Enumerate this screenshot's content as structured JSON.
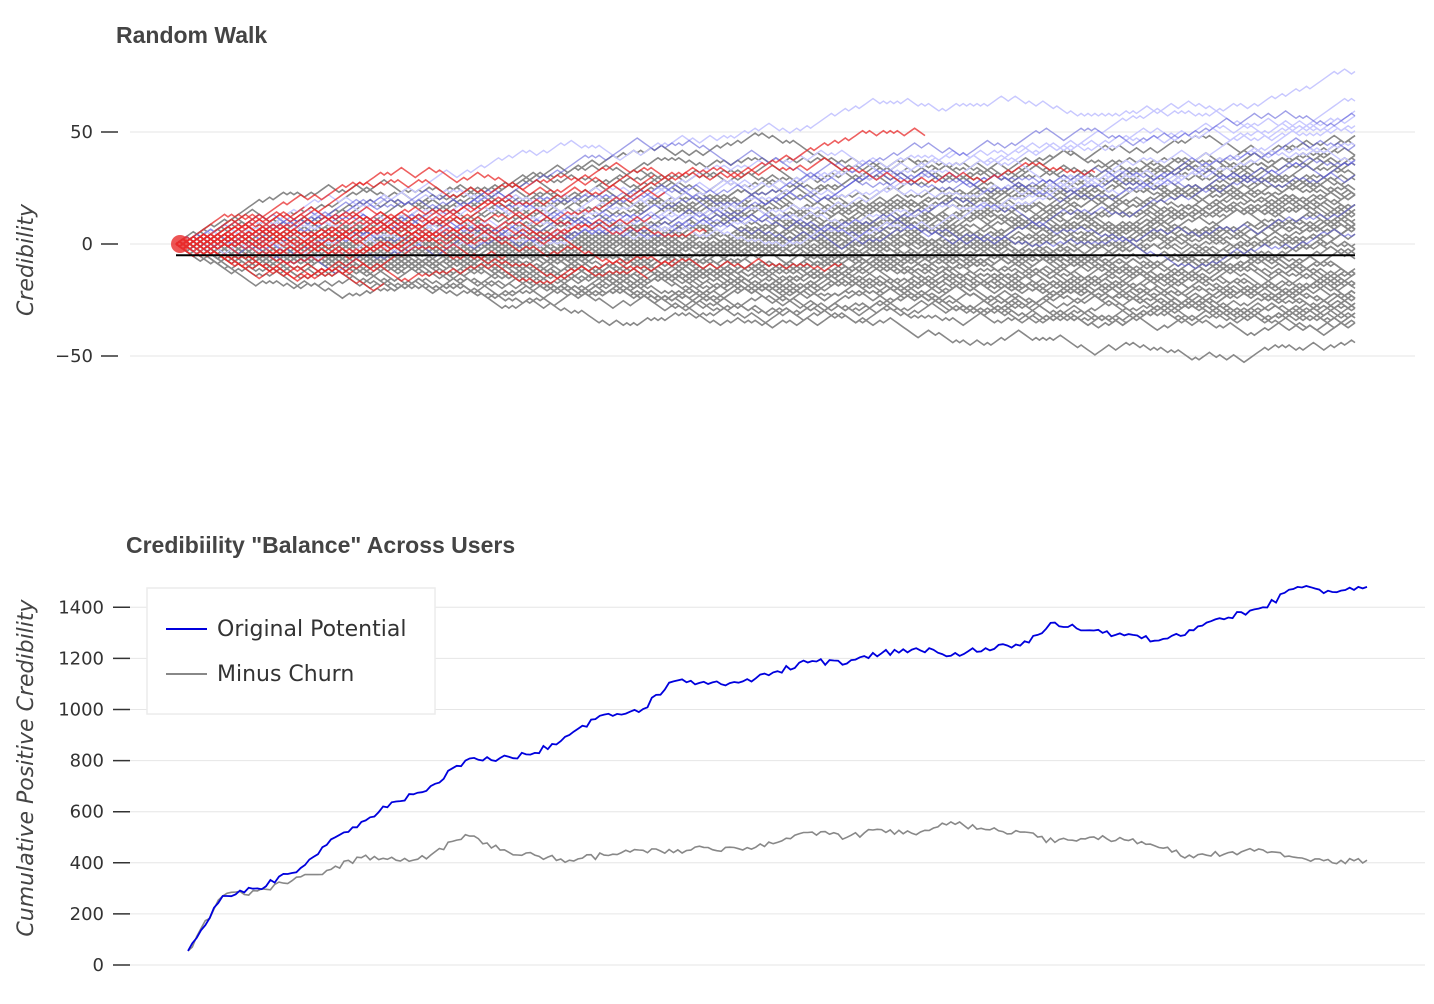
{
  "chart_data": [
    {
      "type": "line",
      "title": "Random Walk",
      "xlabel": "",
      "ylabel": "Credibility",
      "ylim": [
        -92,
        78
      ],
      "yticks": [
        50,
        0,
        -50
      ],
      "ytick_labels": [
        "50",
        "0",
        "−50"
      ],
      "grid": true,
      "reference_line": -5,
      "series_groups": [
        {
          "color": "#888888",
          "count": 70,
          "start": 0,
          "length": 340
        },
        {
          "color": "#c8c8ff",
          "count": 8,
          "start": 0,
          "length": 340
        },
        {
          "color": "#6060d8",
          "count": 7,
          "start": 0,
          "length": 340
        },
        {
          "color": "#e82a2a",
          "count": 24,
          "start": 0,
          "length": "variable"
        }
      ],
      "colors": {
        "gray": "#888888",
        "faint_blue": "#c8c8ff",
        "blue": "#6060d8",
        "red": "#e82a2a",
        "reference": "#000000",
        "grid": "#e6e6e6"
      }
    },
    {
      "type": "line",
      "title": "Credibiility \"Balance\" Across Users",
      "xlabel": "",
      "ylabel": "Cumulative Positive Credibility",
      "ylim": [
        0,
        1490
      ],
      "yticks": [
        1400,
        1200,
        1000,
        800,
        600,
        400,
        200,
        0
      ],
      "ytick_labels": [
        "1400",
        "1200",
        "1000",
        "800",
        "600",
        "400",
        "200",
        "0"
      ],
      "grid": true,
      "legend_position": "top-left",
      "x": [
        0,
        10,
        20,
        30,
        40,
        50,
        60,
        70,
        80,
        90,
        100,
        110,
        120,
        130,
        140,
        150,
        160,
        170,
        180,
        190,
        200,
        210,
        220,
        230,
        240,
        250,
        260,
        270,
        280,
        290,
        300,
        310,
        320,
        330,
        340
      ],
      "series": [
        {
          "name": "Original Potential",
          "color": "#0000dd",
          "values": [
            55,
            270,
            300,
            360,
            470,
            560,
            640,
            700,
            800,
            810,
            830,
            900,
            980,
            990,
            1110,
            1100,
            1110,
            1150,
            1190,
            1180,
            1220,
            1240,
            1210,
            1240,
            1250,
            1340,
            1310,
            1290,
            1270,
            1310,
            1360,
            1400,
            1480,
            1460,
            1480
          ]
        },
        {
          "name": "Minus Churn",
          "color": "#888888",
          "values": [
            55,
            270,
            290,
            330,
            370,
            420,
            410,
            430,
            510,
            450,
            430,
            410,
            430,
            450,
            440,
            460,
            450,
            480,
            520,
            500,
            530,
            510,
            560,
            530,
            520,
            480,
            500,
            490,
            460,
            420,
            440,
            450,
            420,
            400,
            410
          ]
        }
      ]
    }
  ]
}
